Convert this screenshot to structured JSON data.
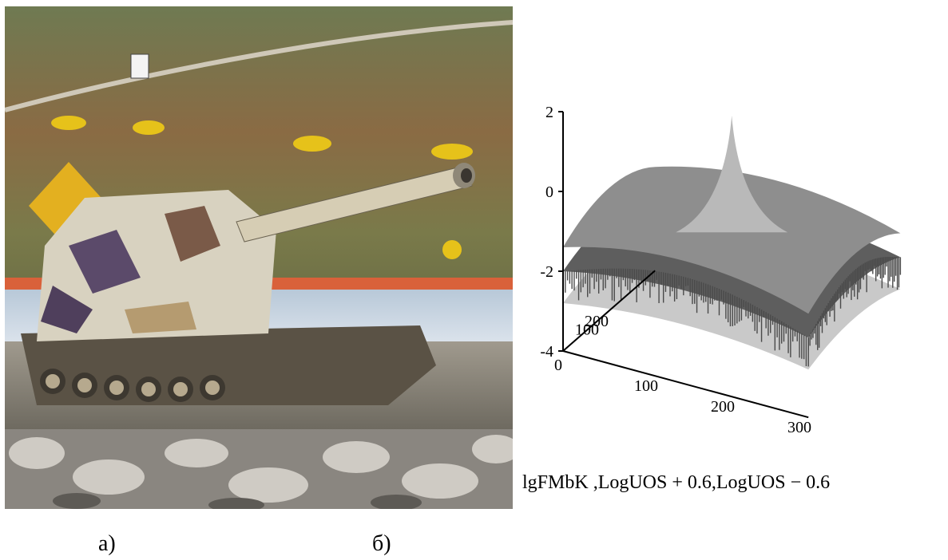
{
  "figure": {
    "photo_alt": "self-propelled howitzer on a range",
    "panel_a_label": "а)",
    "panel_b_label": "б)"
  },
  "chart_data": {
    "type": "surface3d",
    "z_ticks": [
      "2",
      "0",
      "-2",
      "-4"
    ],
    "x_ticks": [
      "0",
      "100",
      "200",
      "300"
    ],
    "y_ticks": [
      "100",
      "200"
    ],
    "zlim": [
      -4,
      2
    ],
    "xlim": [
      0,
      300
    ],
    "ylim": [
      0,
      300
    ],
    "surfaces": [
      "lgFMbK",
      "LogUOS + 0.6",
      "LogUOS - 0.6"
    ],
    "caption": "lgFMbK ,LogUOS + 0.6,LogUOS − 0.6",
    "colors": {
      "surface_light": "#c9c9c9",
      "surface_mid": "#8e8e8e",
      "surface_dark": "#5e5e5e",
      "spikes": "#4a4a4a"
    }
  }
}
